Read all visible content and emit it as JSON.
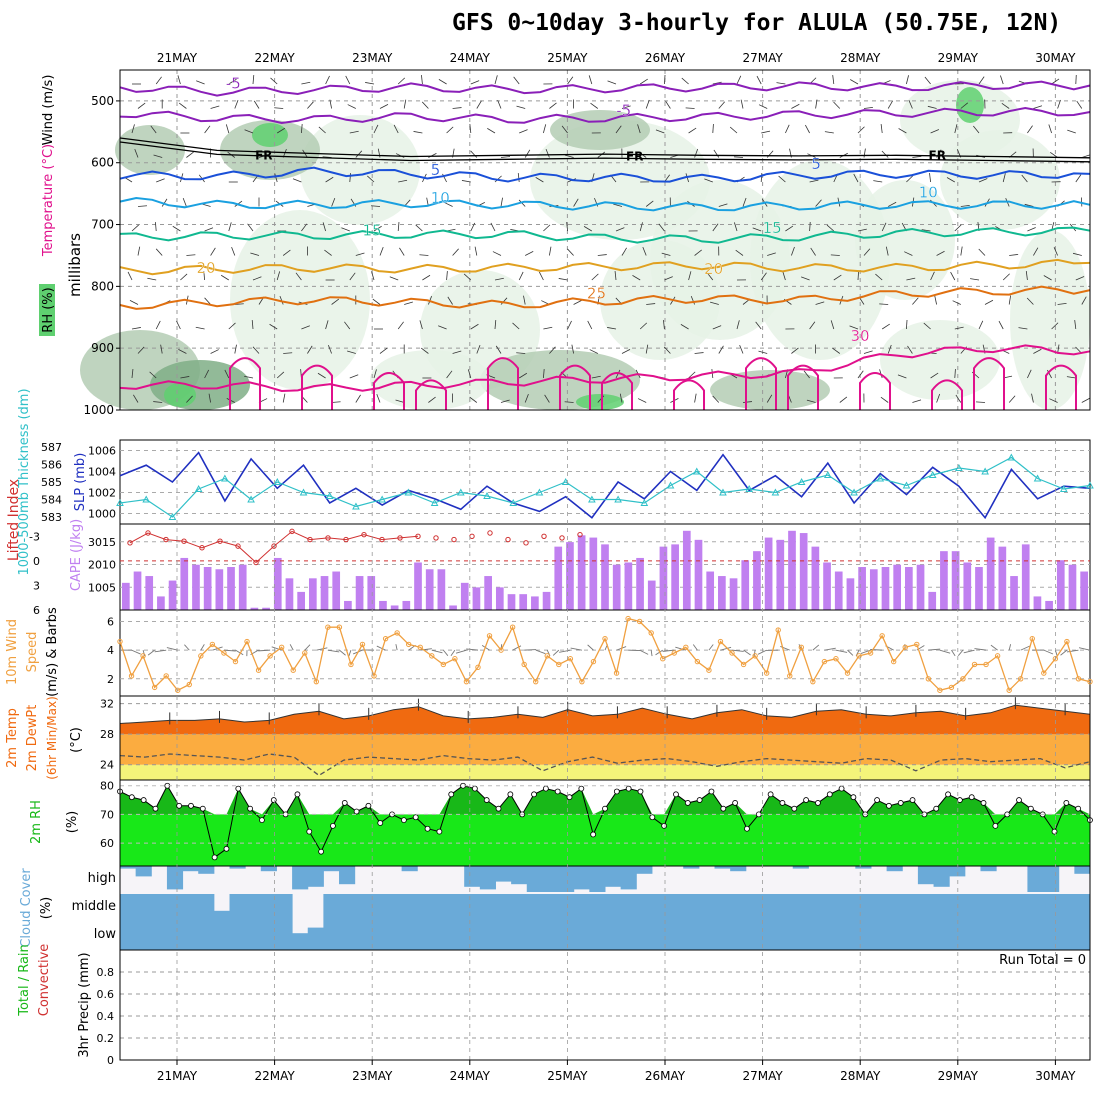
{
  "title": "GFS 0~10day 3-hourly for ALULA (50.75E, 12N)",
  "colors": {
    "rh_light": "#e6f2e6",
    "rh_mid": "#b4ccb4",
    "rh_dark": "#7fae86",
    "rh_bright": "#5fd070",
    "iso_m5": "#8a1fb8",
    "iso_5": "#1a50d8",
    "iso_10": "#1aa0e0",
    "iso_15": "#10b890",
    "iso_20": "#e0a020",
    "iso_25": "#e07010",
    "iso_30": "#e0108c",
    "slp": "#2030c0",
    "thickness": "#30c0c8",
    "lifted": "#d03030",
    "cape": "#c080f0",
    "wind10": "#f0a040",
    "temp_fill": "#f06a10",
    "temp_mid": "#fbac40",
    "temp_low": "#f4f47a",
    "rh2_fill": "#18e818",
    "rh2_dark": "#18b818",
    "cloud": "#6aaad8",
    "precip_grid": "#999999"
  },
  "chart_data": [
    {
      "type": "heatmap",
      "panel": "upper-air",
      "ylabel": "millibars",
      "legend_labels": [
        "RH (%)",
        "Temperature (°C)",
        "Wind (m/s)"
      ],
      "y_ticks": [
        500,
        600,
        700,
        800,
        900,
        1000
      ],
      "ylim": [
        450,
        1000
      ],
      "x_ticks": [
        "21MAY",
        "22MAY",
        "23MAY",
        "24MAY",
        "25MAY",
        "26MAY",
        "27MAY",
        "28MAY",
        "29MAY",
        "30MAY"
      ],
      "freezing_level_label": "FR",
      "freezing_level": [
        560,
        580,
        585,
        590,
        588,
        586,
        588,
        589,
        588,
        590,
        592
      ],
      "isotherms": [
        {
          "name": "-5",
          "values": [
            478,
            485,
            482,
            478,
            482,
            480,
            478,
            476,
            478,
            475,
            475
          ]
        },
        {
          "name": "-5",
          "values": [
            520,
            528,
            530,
            525,
            530,
            528,
            526,
            522,
            520,
            518,
            518
          ]
        },
        {
          "name": "5",
          "values": [
            620,
            622,
            614,
            618,
            624,
            624,
            626,
            620,
            618,
            620,
            618
          ]
        },
        {
          "name": "10",
          "values": [
            662,
            668,
            668,
            666,
            668,
            670,
            672,
            670,
            668,
            668,
            668
          ]
        },
        {
          "name": "15",
          "values": [
            720,
            718,
            718,
            716,
            716,
            722,
            724,
            720,
            714,
            712,
            710
          ]
        },
        {
          "name": "20",
          "values": [
            775,
            772,
            770,
            772,
            770,
            768,
            766,
            770,
            770,
            766,
            762
          ]
        },
        {
          "name": "25",
          "values": [
            832,
            826,
            822,
            826,
            830,
            824,
            820,
            822,
            812,
            808,
            806
          ]
        },
        {
          "name": "30",
          "values": [
            960,
            960,
            965,
            960,
            955,
            950,
            945,
            940,
            910,
            900,
            905
          ]
        }
      ],
      "isotherm_labels": [
        {
          "text": "-5",
          "x": 21.5,
          "y": 480,
          "series": "iso_m5"
        },
        {
          "text": "-5",
          "x": 25.5,
          "y": 524,
          "series": "iso_m5"
        },
        {
          "text": "5",
          "x": 23.6,
          "y": 620,
          "series": "iso_5"
        },
        {
          "text": "5",
          "x": 27.5,
          "y": 610,
          "series": "iso_5"
        },
        {
          "text": "10",
          "x": 23.6,
          "y": 665,
          "series": "iso_10"
        },
        {
          "text": "10",
          "x": 28.6,
          "y": 656,
          "series": "iso_10"
        },
        {
          "text": "15",
          "x": 22.9,
          "y": 718,
          "series": "iso_15"
        },
        {
          "text": "15",
          "x": 27.0,
          "y": 714,
          "series": "iso_15"
        },
        {
          "text": "20",
          "x": 21.2,
          "y": 778,
          "series": "iso_20"
        },
        {
          "text": "20",
          "x": 26.4,
          "y": 780,
          "series": "iso_20"
        },
        {
          "text": "25",
          "x": 25.2,
          "y": 820,
          "series": "iso_25"
        },
        {
          "text": "30",
          "x": 27.9,
          "y": 888,
          "series": "iso_30"
        }
      ]
    },
    {
      "type": "line",
      "panel": "slp-thickness",
      "series": [
        {
          "name": "SLP (mb)",
          "axis": "right",
          "ticks": [
            1000,
            1002,
            1004,
            1006
          ],
          "ylim": [
            999,
            1007
          ],
          "values": [
            1003.6,
            1004.6,
            1003.0,
            1005.8,
            1001.2,
            1005.2,
            1002.4,
            1004.6,
            1001.0,
            1002.4,
            1000.8,
            1002.2,
            1001.4,
            1000.4,
            1002.6,
            1001.0,
            1000.2,
            1001.6,
            999.6,
            1003.0,
            1001.4,
            1004.0,
            1002.2,
            1005.6,
            1002.2,
            1003.6,
            1001.6,
            1004.8,
            1001.0,
            1003.8,
            1001.8,
            1004.4,
            1002.6,
            999.6,
            1004.2,
            1001.4,
            1002.6,
            1002.4
          ]
        },
        {
          "name": "1000-500mb Thickness (dm)",
          "axis": "left",
          "ticks": [
            583,
            584,
            585,
            586,
            587
          ],
          "ylim": [
            582.6,
            587.4
          ],
          "values": [
            583.8,
            584.0,
            583.0,
            584.6,
            585.2,
            584.0,
            585.0,
            584.4,
            584.2,
            583.6,
            584.0,
            584.4,
            583.8,
            584.4,
            584.2,
            583.8,
            584.4,
            585.0,
            584.0,
            584.0,
            583.8,
            584.8,
            585.6,
            584.4,
            584.6,
            584.4,
            585.0,
            585.4,
            584.4,
            585.2,
            584.8,
            585.4,
            585.8,
            585.6,
            586.4,
            585.2,
            584.6,
            584.8
          ]
        }
      ]
    },
    {
      "type": "bar",
      "panel": "cape-lifted",
      "series": [
        {
          "name": "Lifted Index",
          "axis": "left",
          "type": "line",
          "ticks": [
            -3,
            0,
            3,
            6
          ],
          "tick_labels": [
            "-3",
            "0",
            "3",
            "6"
          ],
          "values": [
            -2.2,
            -3.4,
            -2.6,
            -2.4,
            -1.6,
            -2.4,
            -1.8,
            0.2,
            -1.8,
            -3.6,
            -2.6,
            -2.8,
            -2.6,
            -3.2,
            -2.6,
            -2.8,
            -3.0,
            -2.8,
            -2.6,
            -3.0,
            -3.4,
            -2.6,
            -2.2,
            -3.0,
            -2.8,
            -3.2
          ]
        },
        {
          "name": "CAPE (J/kg)",
          "axis": "right",
          "ticks": [
            1005,
            2010,
            3015
          ],
          "values": [
            1200,
            1700,
            1500,
            600,
            1300,
            2300,
            2000,
            1900,
            1800,
            1900,
            2000,
            100,
            100,
            2300,
            1400,
            800,
            1400,
            1500,
            1700,
            400,
            1500,
            1500,
            400,
            200,
            400,
            2100,
            1800,
            1800,
            200,
            1200,
            1000,
            1500,
            1000,
            700,
            700,
            600,
            800,
            2800,
            3000,
            3300,
            3200,
            2900,
            2000,
            2100,
            2300,
            1300,
            2800,
            2900,
            3500,
            3100,
            1700,
            1500,
            1400,
            2200,
            2600,
            3200,
            3100,
            3500,
            3400,
            2800,
            2100,
            1700,
            1400,
            1900,
            1800,
            1900,
            2000,
            1900,
            2000,
            800,
            2600,
            2600,
            2100,
            1900,
            3200,
            2800,
            1500,
            2900,
            600,
            400,
            2200,
            2000,
            1700
          ]
        }
      ],
      "ylim": [
        0,
        3800
      ]
    },
    {
      "type": "line",
      "panel": "wind10",
      "ylabel": "10m Wind Speed (m/s) & Barbs",
      "ticks": [
        2,
        4,
        6
      ],
      "ylim": [
        0.8,
        6.8
      ],
      "values": [
        4.6,
        2.2,
        3.6,
        1.4,
        2.2,
        1.2,
        1.6,
        3.6,
        4.4,
        3.8,
        3.2,
        4.6,
        2.6,
        3.6,
        4.2,
        2.6,
        3.8,
        1.8,
        5.6,
        5.6,
        3.0,
        4.4,
        2.2,
        4.8,
        5.2,
        4.4,
        4.2,
        3.6,
        3.0,
        3.4,
        1.8,
        2.8,
        5.0,
        4.0,
        5.6,
        3.0,
        1.8,
        3.6,
        3.0,
        3.4,
        1.8,
        3.2,
        4.8,
        2.4,
        6.2,
        6.0,
        5.2,
        3.4,
        3.8,
        4.2,
        3.2,
        2.6,
        4.6,
        3.8,
        3.0,
        3.6,
        2.4,
        5.4,
        2.2,
        4.2,
        1.8,
        3.2,
        3.4,
        2.4,
        3.6,
        3.8,
        5.0,
        3.2,
        4.2,
        4.4,
        2.0,
        1.2,
        1.4,
        2.0,
        3.0,
        3.0,
        3.6,
        1.2,
        2.0,
        4.8,
        2.4,
        3.4,
        4.6,
        2.0,
        1.8
      ]
    },
    {
      "type": "area",
      "panel": "temp2m",
      "ylabel": "2m Temp 2m DewPt (6hr Min/Max) (°C)",
      "ticks": [
        24,
        28,
        32
      ],
      "ylim": [
        22,
        33
      ],
      "series": [
        {
          "name": "2m Temp",
          "values": [
            29.4,
            29.6,
            29.8,
            29.8,
            30.0,
            29.6,
            29.8,
            30.6,
            31.0,
            30.0,
            30.4,
            31.2,
            31.6,
            30.4,
            30.0,
            30.2,
            30.6,
            30.2,
            31.2,
            30.4,
            30.6,
            31.4,
            30.6,
            30.0,
            30.8,
            31.2,
            30.4,
            30.2,
            31.0,
            31.2,
            30.6,
            30.4,
            30.8,
            31.0,
            30.4,
            30.8,
            31.8,
            31.4,
            31.0,
            30.6
          ]
        },
        {
          "name": "2m DewPt",
          "values": [
            25.2,
            25.0,
            25.4,
            25.2,
            25.0,
            24.6,
            25.4,
            25.0,
            22.6,
            24.6,
            25.0,
            24.8,
            24.6,
            25.2,
            24.8,
            24.6,
            25.0,
            23.2,
            24.4,
            25.0,
            24.2,
            24.6,
            24.8,
            24.4,
            23.8,
            24.4,
            24.8,
            24.6,
            24.4,
            24.2,
            24.8,
            24.6,
            23.2,
            24.6,
            24.8,
            24.4,
            24.6,
            24.8,
            23.6,
            24.4
          ]
        }
      ]
    },
    {
      "type": "area",
      "panel": "rh2m",
      "ylabel": "2m RH (%)",
      "ticks": [
        60,
        70,
        80
      ],
      "ylim": [
        52,
        82
      ],
      "values": [
        78,
        76,
        75,
        72,
        80,
        73,
        73,
        72,
        55,
        58,
        79,
        72,
        68,
        75,
        70,
        77,
        64,
        57,
        66,
        74,
        71,
        73,
        67,
        70,
        68,
        69,
        65,
        64,
        77,
        80,
        79,
        75,
        72,
        77,
        70,
        77,
        79,
        78,
        76,
        79,
        63,
        72,
        78,
        79,
        78,
        69,
        66,
        77,
        74,
        75,
        78,
        72,
        74,
        65,
        70,
        77,
        74,
        72,
        75,
        74,
        77,
        79,
        76,
        70,
        75,
        73,
        74,
        75,
        70,
        72,
        77,
        75,
        76,
        74,
        66,
        70,
        75,
        72,
        70,
        64,
        74,
        72,
        68
      ]
    },
    {
      "type": "area",
      "panel": "cloud-cover",
      "ylabel": "Cloud Cover (%)",
      "levels": [
        "high",
        "middle",
        "low"
      ],
      "high": [
        0.1,
        0.4,
        0.0,
        0.9,
        0.2,
        0.3,
        0.0,
        0.1,
        0.0,
        0.2,
        0.0,
        0.9,
        0.8,
        0.2,
        0.7,
        0.0,
        0.0,
        0.0,
        0.2,
        0.0,
        0.0,
        0.0,
        0.8,
        0.9,
        0.6,
        0.7,
        1.0,
        1.0,
        1.0,
        0.9,
        1.0,
        0.8,
        0.9,
        0.3,
        0.0,
        0.0,
        0.1,
        0.0,
        0.1,
        0.2,
        0.0,
        0.0,
        0.0,
        0.1,
        0.0,
        0.0,
        0.0,
        0.1,
        0.0,
        0.2,
        0.0,
        0.7,
        0.8,
        0.4,
        0.0,
        0.2,
        0.0,
        0.0,
        1.0,
        1.0,
        0.0,
        0.3
      ],
      "middle": [
        1.0,
        1.0,
        1.0,
        1.0,
        1.0,
        1.0,
        0.7,
        1.0,
        1.0,
        1.0,
        1.0,
        0.3,
        0.4,
        1.0,
        1.0,
        1.0,
        1.0,
        1.0,
        1.0,
        1.0,
        1.0,
        1.0,
        1.0,
        1.0,
        1.0,
        1.0,
        1.0,
        1.0,
        1.0,
        1.0,
        1.0,
        1.0,
        1.0,
        1.0,
        1.0,
        1.0,
        1.0,
        1.0,
        1.0,
        1.0,
        1.0,
        1.0,
        1.0,
        1.0,
        1.0,
        1.0,
        1.0,
        1.0,
        1.0,
        1.0,
        1.0,
        1.0,
        1.0,
        1.0,
        1.0,
        1.0,
        1.0,
        1.0,
        1.0,
        1.0,
        1.0,
        1.0
      ]
    },
    {
      "type": "bar",
      "panel": "precip",
      "ylabel": "3hr Precip (mm)",
      "legend_labels": [
        "Total / Rain",
        "Convective"
      ],
      "ticks": [
        0,
        0.2,
        0.4,
        0.6,
        0.8
      ],
      "ylim": [
        0,
        1
      ],
      "run_total_label": "Run Total = 0",
      "values": []
    }
  ]
}
